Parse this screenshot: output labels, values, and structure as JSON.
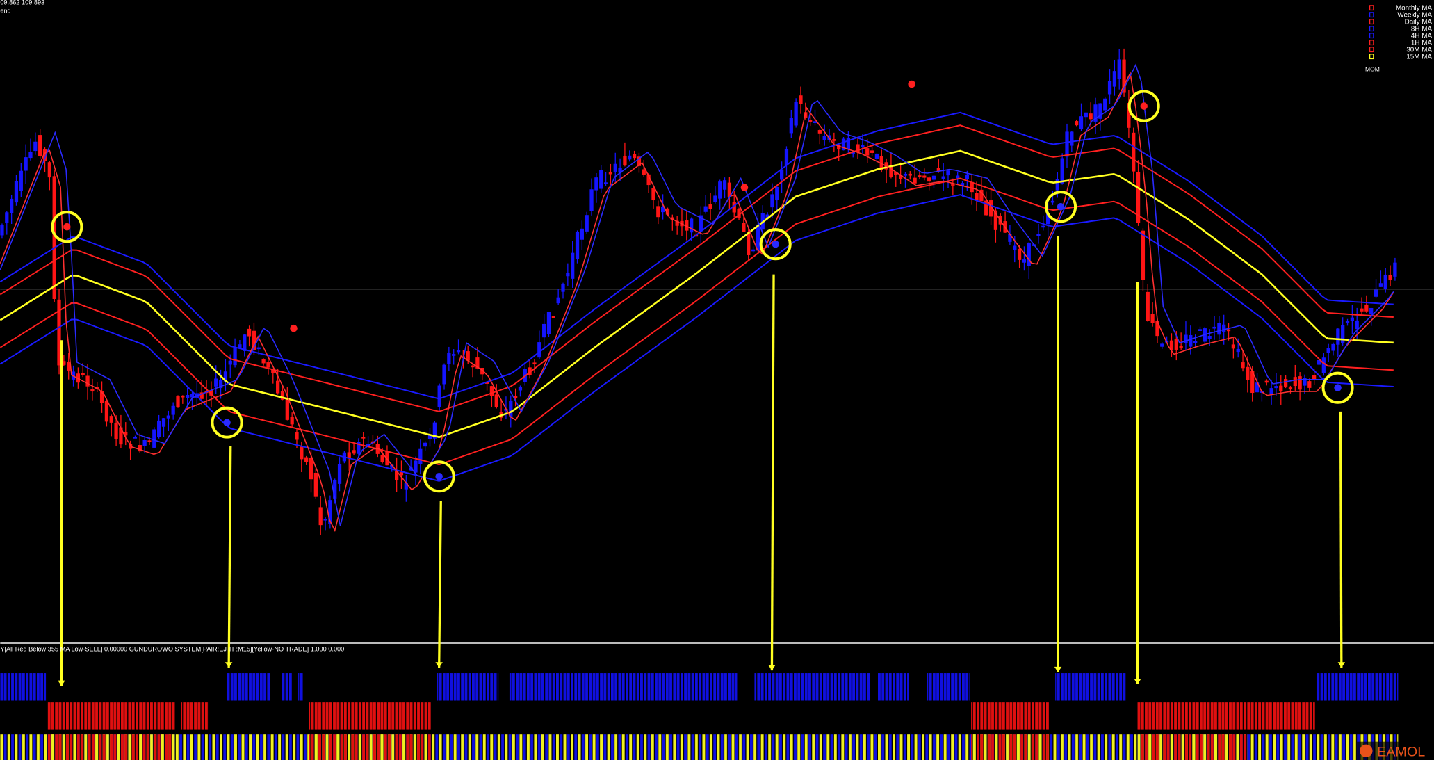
{
  "header": {
    "price": "09.862 109.893",
    "label": "end"
  },
  "legend": {
    "items": [
      "Monthly MA",
      "Weekly MA",
      "Daily MA",
      "8H MA",
      "4H MA",
      "1H MA",
      "30M MA",
      "15M MA"
    ],
    "mom": "MOM"
  },
  "status": "Y[All Red Below 355 MA Low-SELL] 0.00000  GUNDUROWO SYSTEM[PAIR:EJ TF:M15][Yellow-NO TRADE] 1.000 0.000",
  "watermark": "EAMOL"
}
